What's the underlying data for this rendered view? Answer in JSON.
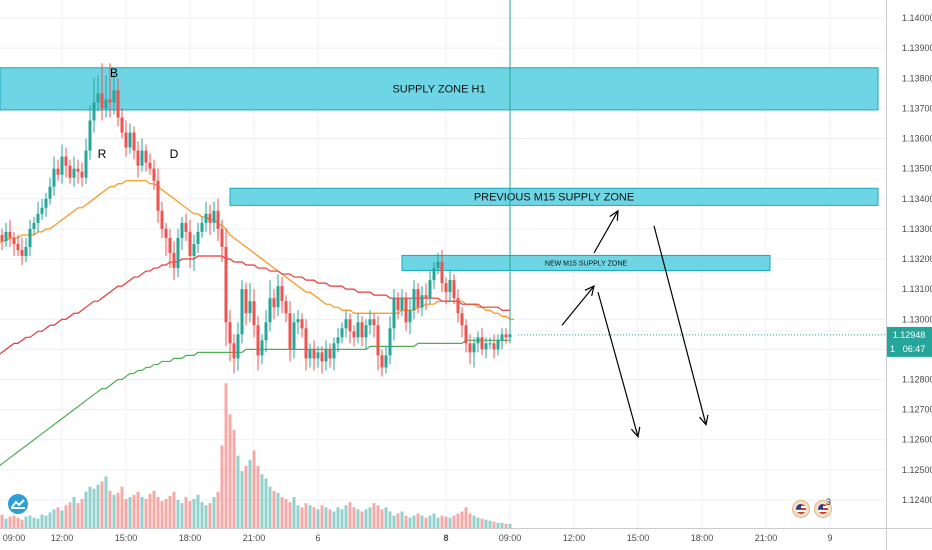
{
  "chart_data": {
    "type": "candlestick",
    "instrument_price_axis": {
      "ylim": [
        1.1237,
        1.1405
      ],
      "tick_labels": [
        "1.14000",
        "1.13900",
        "1.13800",
        "1.13700",
        "1.13600",
        "1.13500",
        "1.13400",
        "1.13300",
        "1.13200",
        "1.13100",
        "1.13000",
        "1.12900",
        "1.12800",
        "1.12700",
        "1.12600",
        "1.12500",
        "1.12400"
      ],
      "tick_values": [
        1.14,
        1.139,
        1.138,
        1.137,
        1.136,
        1.135,
        1.134,
        1.133,
        1.132,
        1.131,
        1.13,
        1.129,
        1.128,
        1.127,
        1.126,
        1.125,
        1.124
      ]
    },
    "time_axis": {
      "tick_labels": [
        "09:00",
        "12:00",
        "15:00",
        "18:00",
        "21:00",
        "6",
        "8",
        "09:00",
        "12:00",
        "15:00",
        "18:00",
        "21:00",
        "9"
      ],
      "tick_bar_index": [
        -2,
        14,
        30,
        46,
        62,
        78,
        110,
        126,
        142,
        158,
        174,
        190,
        206
      ],
      "bold_labels": [
        "8"
      ]
    },
    "current_price": {
      "label": "1.12948",
      "value": 1.12948,
      "countdown": "06:47",
      "countdown_prefix": "1",
      "color": "#26a69a"
    },
    "zones": [
      {
        "label": "SUPPLY ZONE H1",
        "top": 1.13835,
        "bottom": 1.13695,
        "start_bar": -5,
        "end_bar": 218,
        "font_size": 11
      },
      {
        "label": "PREVIOUS M15 SUPPLY ZONE",
        "top": 1.13435,
        "bottom": 1.13378,
        "start_bar": 56,
        "end_bar": 218,
        "font_size": 11
      },
      {
        "label": "NEW M15 SUPPLY ZONE",
        "top": 1.13212,
        "bottom": 1.13162,
        "start_bar": 99,
        "end_bar": 191,
        "font_size": 7
      }
    ],
    "point_labels": [
      {
        "text": "B",
        "bar": 27,
        "price": 1.13805
      },
      {
        "text": "R",
        "bar": 24,
        "price": 1.13535
      },
      {
        "text": "D",
        "bar": 42,
        "price": 1.13535
      }
    ],
    "candles": {
      "start_bar": -4,
      "open_first": 1.1342,
      "closes": [
        1.1338,
        1.1332,
        1.1328,
        1.1326,
        1.1329,
        1.1327,
        1.1325,
        1.1323,
        1.1321,
        1.1324,
        1.133,
        1.1332,
        1.1335,
        1.1337,
        1.134,
        1.1344,
        1.135,
        1.1348,
        1.1354,
        1.1351,
        1.1347,
        1.135,
        1.1349,
        1.1347,
        1.1356,
        1.1366,
        1.1372,
        1.1375,
        1.137,
        1.1373,
        1.1372,
        1.1376,
        1.1367,
        1.1362,
        1.1357,
        1.1362,
        1.1356,
        1.1351,
        1.1356,
        1.1352,
        1.135,
        1.1346,
        1.1336,
        1.133,
        1.1327,
        1.1322,
        1.1317,
        1.1327,
        1.1332,
        1.1329,
        1.1321,
        1.1325,
        1.1329,
        1.1332,
        1.1335,
        1.1332,
        1.1336,
        1.133,
        1.1324,
        1.1299,
        1.1292,
        1.1287,
        1.1295,
        1.131,
        1.1302,
        1.1306,
        1.1298,
        1.1288,
        1.1293,
        1.1299,
        1.1307,
        1.1304,
        1.1311,
        1.1306,
        1.1302,
        1.129,
        1.1299,
        1.13,
        1.1297,
        1.1287,
        1.129,
        1.1287,
        1.1289,
        1.1286,
        1.129,
        1.1287,
        1.1292,
        1.1294,
        1.1297,
        1.13,
        1.1296,
        1.1294,
        1.1299,
        1.1294,
        1.1298,
        1.13,
        1.1298,
        1.1288,
        1.1284,
        1.1288,
        1.1297,
        1.1307,
        1.1303,
        1.1307,
        1.1299,
        1.1303,
        1.131,
        1.1304,
        1.1308,
        1.1307,
        1.1313,
        1.1317,
        1.1319,
        1.1312,
        1.1309,
        1.1313,
        1.1307,
        1.1302,
        1.1298,
        1.1292,
        1.1289,
        1.1292,
        1.1294,
        1.129,
        1.1292,
        1.1292,
        1.129,
        1.1293,
        1.1295,
        1.1294,
        1.1295
      ],
      "highs_extra": [
        0.0003,
        0.0004,
        0.0003,
        0.0002,
        0.0003,
        0.0004,
        0.0002,
        0.0003,
        0.0004,
        0.0003,
        0.0003,
        0.0002,
        0.0004,
        0.0003,
        0.0002,
        0.0003,
        0.0004,
        0.0003,
        0.0004,
        0.0003,
        0.0002,
        0.0004,
        0.0003,
        0.0003,
        0.0004,
        0.0005,
        0.0008,
        0.0006,
        0.001,
        0.0008,
        0.0012,
        0.0006,
        0.0004,
        0.0003,
        0.0004,
        0.0003,
        0.0002,
        0.0003,
        0.0004,
        0.0002,
        0.0003,
        0.0003,
        0.0004,
        0.0003,
        0.0002,
        0.0003,
        0.0004,
        0.0003,
        0.0002,
        0.0003,
        0.0004,
        0.0003,
        0.0003,
        0.0002,
        0.0004,
        0.0003,
        0.0003,
        0.0004,
        0.0003,
        0.0006,
        0.0004,
        0.0003,
        0.0004,
        0.0003,
        0.0002,
        0.0006,
        0.0004,
        0.0003,
        0.0002,
        0.0004,
        0.0006,
        0.0003,
        0.0004,
        0.0003,
        0.0002,
        0.0004,
        0.0003,
        0.0003,
        0.0002,
        0.0003,
        0.0002,
        0.0003,
        0.0002,
        0.0002,
        0.0003,
        0.0002,
        0.0002,
        0.0003,
        0.0002,
        0.0003,
        0.0002,
        0.0002,
        0.0003,
        0.0002,
        0.0002,
        0.0003,
        0.0002,
        0.0003,
        0.0002,
        0.0003,
        0.0004,
        0.0003,
        0.0002,
        0.0003,
        0.0002,
        0.0004,
        0.0003,
        0.0002,
        0.0003,
        0.0004,
        0.0003,
        0.0002,
        0.0003,
        0.0004,
        0.0002,
        0.0003,
        0.0002,
        0.0003,
        0.0002,
        0.0002,
        0.0003,
        0.0002,
        0.0002,
        0.0003,
        0.0002,
        0.0002,
        0.0003,
        0.0002,
        0.0002,
        0.0002
      ],
      "lows_extra": [
        0.0003,
        0.0002,
        0.0003,
        0.0003,
        0.0002,
        0.0003,
        0.0004,
        0.0002,
        0.0003,
        0.0002,
        0.0003,
        0.0002,
        0.0003,
        0.0002,
        0.0003,
        0.0002,
        0.0003,
        0.0002,
        0.0003,
        0.0004,
        0.0002,
        0.0003,
        0.0004,
        0.0003,
        0.0002,
        0.0003,
        0.0004,
        0.0003,
        0.0004,
        0.0003,
        0.0005,
        0.0004,
        0.0003,
        0.0002,
        0.0003,
        0.0002,
        0.0003,
        0.0004,
        0.0002,
        0.0003,
        0.0002,
        0.0003,
        0.0004,
        0.0003,
        0.0006,
        0.0005,
        0.0004,
        0.0003,
        0.0004,
        0.0003,
        0.0004,
        0.0005,
        0.0003,
        0.0002,
        0.0003,
        0.0004,
        0.0003,
        0.0004,
        0.0005,
        0.0008,
        0.0006,
        0.0005,
        0.0004,
        0.0003,
        0.0004,
        0.0003,
        0.0004,
        0.0005,
        0.0003,
        0.0004,
        0.0003,
        0.0004,
        0.0003,
        0.0004,
        0.0003,
        0.0004,
        0.0003,
        0.0004,
        0.0003,
        0.0004,
        0.0003,
        0.0004,
        0.0003,
        0.0004,
        0.0003,
        0.0003,
        0.0004,
        0.0003,
        0.0002,
        0.0003,
        0.0004,
        0.0003,
        0.0002,
        0.0003,
        0.0004,
        0.0003,
        0.0004,
        0.0005,
        0.0003,
        0.0002,
        0.0003,
        0.0004,
        0.0003,
        0.0002,
        0.0003,
        0.0004,
        0.0003,
        0.0002,
        0.0003,
        0.0004,
        0.0002,
        0.0003,
        0.0002,
        0.0003,
        0.0004,
        0.0003,
        0.0002,
        0.0003,
        0.0004,
        0.0003,
        0.0004,
        0.0005,
        0.0003,
        0.0002,
        0.0003,
        0.0002,
        0.0003,
        0.0002,
        0.0003,
        0.0002,
        0.0002
      ],
      "up_color": "#26a69a",
      "down_color": "#ef5350"
    },
    "volume": {
      "values": [
        14,
        12,
        10,
        13,
        9,
        11,
        12,
        10,
        8,
        11,
        12,
        10,
        9,
        13,
        12,
        15,
        18,
        20,
        17,
        22,
        25,
        30,
        24,
        28,
        35,
        40,
        38,
        42,
        45,
        50,
        36,
        32,
        34,
        40,
        28,
        30,
        32,
        35,
        30,
        28,
        33,
        36,
        30,
        26,
        28,
        31,
        35,
        27,
        24,
        30,
        26,
        28,
        32,
        25,
        22,
        24,
        30,
        35,
        80,
        140,
        110,
        95,
        70,
        55,
        60,
        66,
        75,
        60,
        52,
        48,
        40,
        36,
        34,
        30,
        28,
        25,
        30,
        22,
        20,
        24,
        22,
        20,
        18,
        22,
        20,
        18,
        16,
        20,
        18,
        22,
        25,
        20,
        18,
        16,
        18,
        20,
        24,
        22,
        18,
        20,
        16,
        12,
        14,
        16,
        12,
        10,
        12,
        14,
        12,
        10,
        12,
        14,
        10,
        12,
        11,
        10,
        12,
        14,
        16,
        20,
        14,
        12,
        10,
        9,
        8,
        7,
        6,
        5,
        5,
        4,
        4
      ],
      "max": 150
    },
    "moving_averages": [
      {
        "color": "#f7931a",
        "values": [
          1.1323,
          1.1324,
          1.1325,
          1.1326,
          1.1326,
          1.1327,
          1.1327,
          1.1327,
          1.1328,
          1.1328,
          1.1328,
          1.1328,
          1.1329,
          1.1329,
          1.133,
          1.133,
          1.1331,
          1.1332,
          1.1333,
          1.1334,
          1.1335,
          1.1336,
          1.1337,
          1.1337,
          1.1338,
          1.1339,
          1.134,
          1.1341,
          1.1342,
          1.1343,
          1.1344,
          1.1344,
          1.1345,
          1.1345,
          1.1346,
          1.1346,
          1.1346,
          1.1346,
          1.1346,
          1.1346,
          1.1345,
          1.1345,
          1.1344,
          1.1343,
          1.1342,
          1.1341,
          1.134,
          1.1339,
          1.1338,
          1.1337,
          1.1336,
          1.1335,
          1.1335,
          1.1334,
          1.1334,
          1.1333,
          1.1333,
          1.1332,
          1.1331,
          1.133,
          1.1328,
          1.1327,
          1.1326,
          1.1325,
          1.1324,
          1.1323,
          1.1322,
          1.1321,
          1.132,
          1.1319,
          1.1318,
          1.1317,
          1.1316,
          1.1315,
          1.1314,
          1.1313,
          1.1312,
          1.1311,
          1.131,
          1.1309,
          1.1309,
          1.1308,
          1.1307,
          1.1306,
          1.1305,
          1.1305,
          1.1304,
          1.1304,
          1.1303,
          1.1303,
          1.1303,
          1.1302,
          1.1302,
          1.1302,
          1.1302,
          1.1302,
          1.1302,
          1.1302,
          1.1302,
          1.1302,
          1.1302,
          1.1302,
          1.1302,
          1.1303,
          1.1303,
          1.1303,
          1.1303,
          1.1304,
          1.1304,
          1.1305,
          1.1305,
          1.1305,
          1.1306,
          1.1306,
          1.1306,
          1.1306,
          1.1306,
          1.1306,
          1.1306,
          1.1305,
          1.1305,
          1.1305,
          1.1304,
          1.1304,
          1.1303,
          1.1303,
          1.1302,
          1.1302,
          1.1301,
          1.1301,
          1.13,
          1.13
        ]
      },
      {
        "color": "#e53935",
        "values": [
          1.1286,
          1.1287,
          1.1288,
          1.1289,
          1.129,
          1.1291,
          1.1292,
          1.1292,
          1.1293,
          1.1294,
          1.1294,
          1.1295,
          1.1296,
          1.1296,
          1.1297,
          1.1298,
          1.1298,
          1.1299,
          1.13,
          1.13,
          1.1301,
          1.1302,
          1.1302,
          1.1303,
          1.1304,
          1.1305,
          1.1306,
          1.1306,
          1.1307,
          1.1308,
          1.1309,
          1.131,
          1.1311,
          1.1311,
          1.1312,
          1.1313,
          1.1314,
          1.1314,
          1.1315,
          1.1316,
          1.1316,
          1.1317,
          1.1317,
          1.1318,
          1.1318,
          1.1319,
          1.1319,
          1.1319,
          1.132,
          1.132,
          1.132,
          1.132,
          1.1321,
          1.1321,
          1.1321,
          1.1321,
          1.1321,
          1.1321,
          1.1321,
          1.132,
          1.132,
          1.1319,
          1.1319,
          1.1319,
          1.1318,
          1.1318,
          1.1318,
          1.1317,
          1.1317,
          1.1317,
          1.1316,
          1.1316,
          1.1316,
          1.1315,
          1.1315,
          1.1315,
          1.1314,
          1.1314,
          1.1314,
          1.1313,
          1.1313,
          1.1313,
          1.1312,
          1.1312,
          1.1312,
          1.1311,
          1.1311,
          1.1311,
          1.1311,
          1.131,
          1.131,
          1.131,
          1.1309,
          1.1309,
          1.1309,
          1.1309,
          1.1308,
          1.1308,
          1.1308,
          1.1308,
          1.1307,
          1.1307,
          1.1307,
          1.1307,
          1.1307,
          1.1307,
          1.1307,
          1.1307,
          1.1307,
          1.1307,
          1.1307,
          1.1307,
          1.1307,
          1.1306,
          1.1306,
          1.1306,
          1.1306,
          1.1306,
          1.1305,
          1.1305,
          1.1305,
          1.1305,
          1.1305,
          1.1304,
          1.1304,
          1.1304,
          1.1304,
          1.1304,
          1.1303,
          1.1303,
          1.1303
        ]
      },
      {
        "color": "#4caf50",
        "values": [
          1.1249,
          1.125,
          1.1251,
          1.1252,
          1.1253,
          1.1254,
          1.1255,
          1.1256,
          1.1257,
          1.1258,
          1.1259,
          1.126,
          1.1261,
          1.1262,
          1.1263,
          1.1264,
          1.1265,
          1.1266,
          1.1267,
          1.1268,
          1.1269,
          1.127,
          1.1271,
          1.1272,
          1.1273,
          1.1274,
          1.1275,
          1.1276,
          1.1277,
          1.1277,
          1.1278,
          1.1279,
          1.128,
          1.128,
          1.1281,
          1.1282,
          1.1282,
          1.1283,
          1.1283,
          1.1284,
          1.1284,
          1.1285,
          1.1285,
          1.1286,
          1.1286,
          1.1286,
          1.1287,
          1.1287,
          1.1287,
          1.1288,
          1.1288,
          1.1288,
          1.1289,
          1.1289,
          1.1289,
          1.1289,
          1.1289,
          1.1289,
          1.1289,
          1.1289,
          1.1289,
          1.1289,
          1.1289,
          1.1289,
          1.129,
          1.129,
          1.129,
          1.129,
          1.129,
          1.129,
          1.129,
          1.129,
          1.129,
          1.129,
          1.129,
          1.129,
          1.129,
          1.129,
          1.129,
          1.129,
          1.129,
          1.129,
          1.129,
          1.129,
          1.129,
          1.129,
          1.129,
          1.129,
          1.129,
          1.129,
          1.129,
          1.129,
          1.129,
          1.129,
          1.129,
          1.1291,
          1.1291,
          1.1291,
          1.1291,
          1.1291,
          1.1291,
          1.1291,
          1.1291,
          1.1291,
          1.1291,
          1.1291,
          1.1291,
          1.1292,
          1.1292,
          1.1292,
          1.1292,
          1.1292,
          1.1292,
          1.1292,
          1.1292,
          1.1292,
          1.1292,
          1.1292,
          1.1292,
          1.1293,
          1.1293,
          1.1293,
          1.1293,
          1.1293,
          1.1293,
          1.1293,
          1.1293,
          1.1293,
          1.1293,
          1.1293,
          1.1293
        ]
      }
    ],
    "arrows": [
      {
        "from_bar": 139,
        "from_price": 1.1298,
        "to_bar": 147,
        "to_price": 1.1311
      },
      {
        "from_bar": 147,
        "from_price": 1.1322,
        "to_bar": 153,
        "to_price": 1.1336
      },
      {
        "from_bar": 148,
        "from_price": 1.1309,
        "to_bar": 158,
        "to_price": 1.1261
      },
      {
        "from_bar": 162,
        "from_price": 1.1331,
        "to_bar": 175,
        "to_price": 1.1265
      }
    ],
    "indicator_badge_count": "3"
  }
}
